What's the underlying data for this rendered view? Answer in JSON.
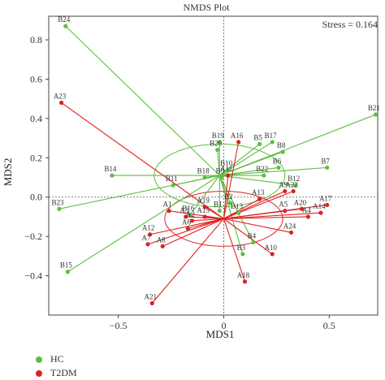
{
  "chart_data": {
    "type": "scatter",
    "title": "NMDS Plot",
    "xlabel": "MDS1",
    "ylabel": "MDS2",
    "xlim": [
      -0.83,
      0.73
    ],
    "ylim": [
      -0.6,
      0.92
    ],
    "xticks": [
      -0.5,
      0,
      0.5
    ],
    "yticks": [
      -0.4,
      -0.2,
      0.0,
      0.2,
      0.4,
      0.6,
      0.8
    ],
    "xtick_labels": [
      "−0.5",
      "0",
      "0.5"
    ],
    "ytick_labels": [
      "−0.4",
      "−0.2",
      "0.0",
      "0.2",
      "0.4",
      "0.6",
      "0.8"
    ],
    "stress_label": "Stress = 0.164",
    "series": [
      {
        "name": "HC",
        "color": "#5cbf3f",
        "centroid": [
          -0.02,
          0.11
        ],
        "ellipse": {
          "rx": 0.31,
          "ry": 0.16,
          "angle": 0
        },
        "points": [
          {
            "label": "B1",
            "x": -0.02,
            "y": -0.07
          },
          {
            "label": "B2",
            "x": 0.03,
            "y": -0.03
          },
          {
            "label": "B3",
            "x": 0.09,
            "y": -0.29
          },
          {
            "label": "B4",
            "x": 0.14,
            "y": -0.23
          },
          {
            "label": "B5",
            "x": 0.17,
            "y": 0.27
          },
          {
            "label": "B6",
            "x": 0.26,
            "y": 0.15
          },
          {
            "label": "B7",
            "x": 0.49,
            "y": 0.15
          },
          {
            "label": "B8",
            "x": 0.28,
            "y": 0.23
          },
          {
            "label": "B9",
            "x": -0.01,
            "y": 0.1
          },
          {
            "label": "B10",
            "x": 0.02,
            "y": 0.14
          },
          {
            "label": "B11",
            "x": -0.24,
            "y": 0.06
          },
          {
            "label": "B12",
            "x": 0.34,
            "y": 0.06
          },
          {
            "label": "B13",
            "x": 0.07,
            "y": -0.08
          },
          {
            "label": "B14",
            "x": -0.53,
            "y": 0.11
          },
          {
            "label": "B15",
            "x": -0.74,
            "y": -0.38
          },
          {
            "label": "B16",
            "x": -0.16,
            "y": -0.09
          },
          {
            "label": "B17",
            "x": 0.23,
            "y": 0.28
          },
          {
            "label": "B18",
            "x": -0.09,
            "y": 0.1
          },
          {
            "label": "B19",
            "x": -0.02,
            "y": 0.28
          },
          {
            "label": "B20",
            "x": -0.03,
            "y": 0.24
          },
          {
            "label": "B21",
            "x": 0.72,
            "y": 0.42
          },
          {
            "label": "B22",
            "x": 0.19,
            "y": 0.11
          },
          {
            "label": "B23",
            "x": -0.78,
            "y": -0.06
          },
          {
            "label": "B24",
            "x": -0.75,
            "y": 0.87
          }
        ]
      },
      {
        "name": "T2DM",
        "color": "#e02020",
        "centroid": [
          0.0,
          -0.11
        ],
        "ellipse": {
          "rx": 0.28,
          "ry": 0.14,
          "angle": 0
        },
        "points": [
          {
            "label": "A1",
            "x": -0.26,
            "y": -0.07
          },
          {
            "label": "A2",
            "x": -0.15,
            "y": -0.12
          },
          {
            "label": "A3",
            "x": -0.18,
            "y": -0.1
          },
          {
            "label": "A4",
            "x": 0.4,
            "y": -0.1
          },
          {
            "label": "A5",
            "x": 0.29,
            "y": -0.07
          },
          {
            "label": "A6",
            "x": -0.17,
            "y": -0.16
          },
          {
            "label": "A7",
            "x": -0.36,
            "y": -0.24
          },
          {
            "label": "A8",
            "x": -0.29,
            "y": -0.25
          },
          {
            "label": "A9",
            "x": 0.29,
            "y": 0.03
          },
          {
            "label": "A10",
            "x": 0.23,
            "y": -0.29
          },
          {
            "label": "A11",
            "x": 0.02,
            "y": 0.11
          },
          {
            "label": "A12",
            "x": -0.35,
            "y": -0.19
          },
          {
            "label": "A13",
            "x": 0.17,
            "y": -0.01
          },
          {
            "label": "A14",
            "x": 0.46,
            "y": -0.08
          },
          {
            "label": "A15",
            "x": -0.09,
            "y": -0.1
          },
          {
            "label": "A16",
            "x": 0.07,
            "y": 0.28
          },
          {
            "label": "A17",
            "x": 0.49,
            "y": -0.04
          },
          {
            "label": "A18",
            "x": 0.1,
            "y": -0.43
          },
          {
            "label": "A19",
            "x": -0.09,
            "y": -0.05
          },
          {
            "label": "A20",
            "x": 0.37,
            "y": -0.06
          },
          {
            "label": "A21",
            "x": -0.34,
            "y": -0.54
          },
          {
            "label": "A22",
            "x": 0.33,
            "y": 0.03
          },
          {
            "label": "A23",
            "x": -0.77,
            "y": 0.48
          },
          {
            "label": "A24",
            "x": 0.32,
            "y": -0.18
          }
        ]
      }
    ]
  }
}
